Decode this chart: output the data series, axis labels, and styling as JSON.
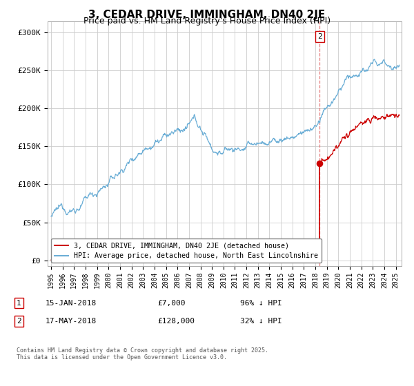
{
  "title": "3, CEDAR DRIVE, IMMINGHAM, DN40 2JE",
  "subtitle": "Price paid vs. HM Land Registry's House Price Index (HPI)",
  "title_fontsize": 11,
  "subtitle_fontsize": 9,
  "ylabel_ticks": [
    "£0",
    "£50K",
    "£100K",
    "£150K",
    "£200K",
    "£250K",
    "£300K"
  ],
  "ytick_vals": [
    0,
    50000,
    100000,
    150000,
    200000,
    250000,
    300000
  ],
  "ylim": [
    -8000,
    315000
  ],
  "xlim_start": 1994.7,
  "xlim_end": 2025.5,
  "xtick_years": [
    1995,
    1996,
    1997,
    1998,
    1999,
    2000,
    2001,
    2002,
    2003,
    2004,
    2005,
    2006,
    2007,
    2008,
    2009,
    2010,
    2011,
    2012,
    2013,
    2014,
    2015,
    2016,
    2017,
    2018,
    2019,
    2020,
    2021,
    2022,
    2023,
    2024,
    2025
  ],
  "hpi_color": "#6baed6",
  "price_color": "#cc0000",
  "dashed_line_color": "#e06060",
  "transaction1_date": 2018.04,
  "transaction1_price": 7000,
  "transaction2_date": 2018.38,
  "transaction2_price": 128000,
  "legend1_label": "3, CEDAR DRIVE, IMMINGHAM, DN40 2JE (detached house)",
  "legend2_label": "HPI: Average price, detached house, North East Lincolnshire",
  "t1_label": "15-JAN-2018",
  "t1_price_str": "£7,000",
  "t1_hpi": "96% ↓ HPI",
  "t2_label": "17-MAY-2018",
  "t2_price_str": "£128,000",
  "t2_hpi": "32% ↓ HPI",
  "footer": "Contains HM Land Registry data © Crown copyright and database right 2025.\nThis data is licensed under the Open Government Licence v3.0.",
  "background_color": "#ffffff",
  "grid_color": "#cccccc"
}
